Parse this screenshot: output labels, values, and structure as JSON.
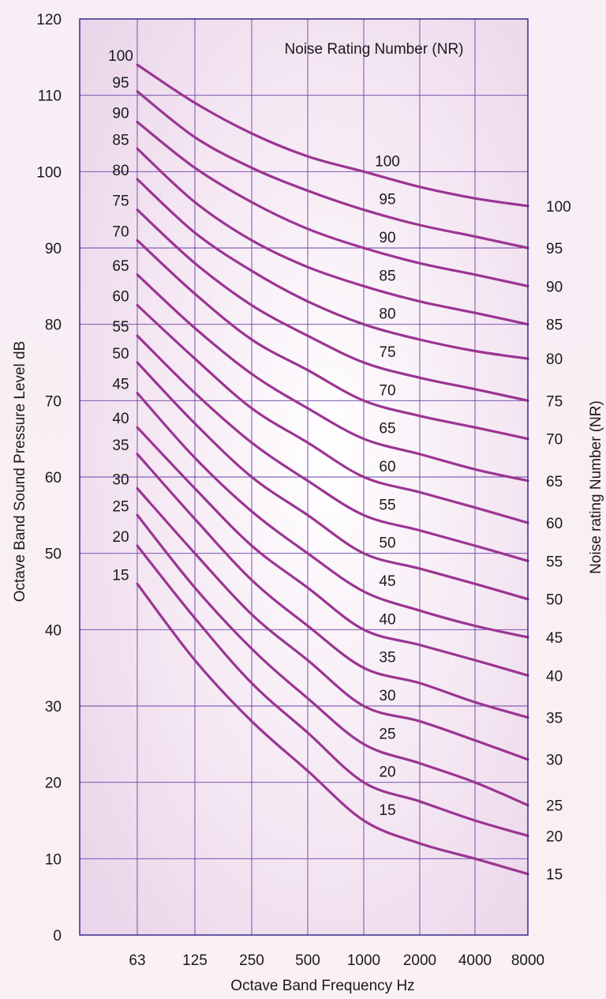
{
  "chart_data": {
    "type": "line",
    "title": "Noise Rating Number (NR)",
    "xlabel": "Octave Band Frequency Hz",
    "ylabel": "Octave Band Sound Pressure Level dB",
    "right_axis_label": "Noise rating Number (NR)",
    "categories": [
      "63",
      "125",
      "250",
      "500",
      "1000",
      "2000",
      "4000",
      "8000"
    ],
    "ylim": [
      0,
      120
    ],
    "yticks": [
      0,
      10,
      20,
      30,
      40,
      50,
      60,
      70,
      80,
      90,
      100,
      110,
      120
    ],
    "grid": true,
    "colors": {
      "curve": "#9b3593",
      "grid": "#6a40a8",
      "axis": "#3a2a8c",
      "plot_bg": "#f2e3f0"
    },
    "series": [
      {
        "name": "100",
        "values": [
          114,
          109,
          105,
          102,
          100,
          98,
          96.5,
          95.5
        ]
      },
      {
        "name": "95",
        "values": [
          110.5,
          104.5,
          100.5,
          97.5,
          95,
          93,
          91.5,
          90
        ]
      },
      {
        "name": "90",
        "values": [
          106.5,
          100.5,
          96,
          92.5,
          90,
          88,
          86.5,
          85
        ]
      },
      {
        "name": "85",
        "values": [
          103,
          96,
          91,
          87.5,
          85,
          83,
          81.5,
          80
        ]
      },
      {
        "name": "80",
        "values": [
          99,
          92,
          87,
          83,
          80,
          78,
          76.5,
          75.5
        ]
      },
      {
        "name": "75",
        "values": [
          95,
          88,
          82.5,
          78.5,
          75,
          73,
          71.5,
          70
        ]
      },
      {
        "name": "70",
        "values": [
          91,
          84,
          78,
          74,
          70,
          68,
          66.5,
          65
        ]
      },
      {
        "name": "65",
        "values": [
          86.5,
          79.5,
          73.5,
          69,
          65,
          63,
          61,
          59.5
        ]
      },
      {
        "name": "60",
        "values": [
          82.5,
          75.5,
          69,
          64.5,
          60,
          58,
          56,
          54
        ]
      },
      {
        "name": "55",
        "values": [
          78.5,
          71,
          64.5,
          59.5,
          55,
          53,
          51,
          49
        ]
      },
      {
        "name": "50",
        "values": [
          75,
          67,
          60,
          55,
          50,
          48,
          46,
          44
        ]
      },
      {
        "name": "45",
        "values": [
          71,
          62.5,
          55.5,
          50,
          45,
          42.5,
          40.5,
          39
        ]
      },
      {
        "name": "40",
        "values": [
          66.5,
          58.5,
          51,
          45.5,
          40,
          38,
          36,
          34
        ]
      },
      {
        "name": "35",
        "values": [
          63,
          54.5,
          46.5,
          40.5,
          35,
          33,
          30.5,
          28.5
        ]
      },
      {
        "name": "30",
        "values": [
          58.5,
          50,
          42,
          36,
          30,
          28,
          25.5,
          23
        ]
      },
      {
        "name": "25",
        "values": [
          55,
          45.5,
          37.5,
          31,
          25,
          22.5,
          20,
          17
        ]
      },
      {
        "name": "20",
        "values": [
          51,
          41.5,
          33,
          26.5,
          20,
          17.5,
          15,
          13
        ]
      },
      {
        "name": "15",
        "values": [
          46,
          36,
          28,
          21.5,
          15,
          12,
          10,
          8
        ]
      }
    ]
  }
}
